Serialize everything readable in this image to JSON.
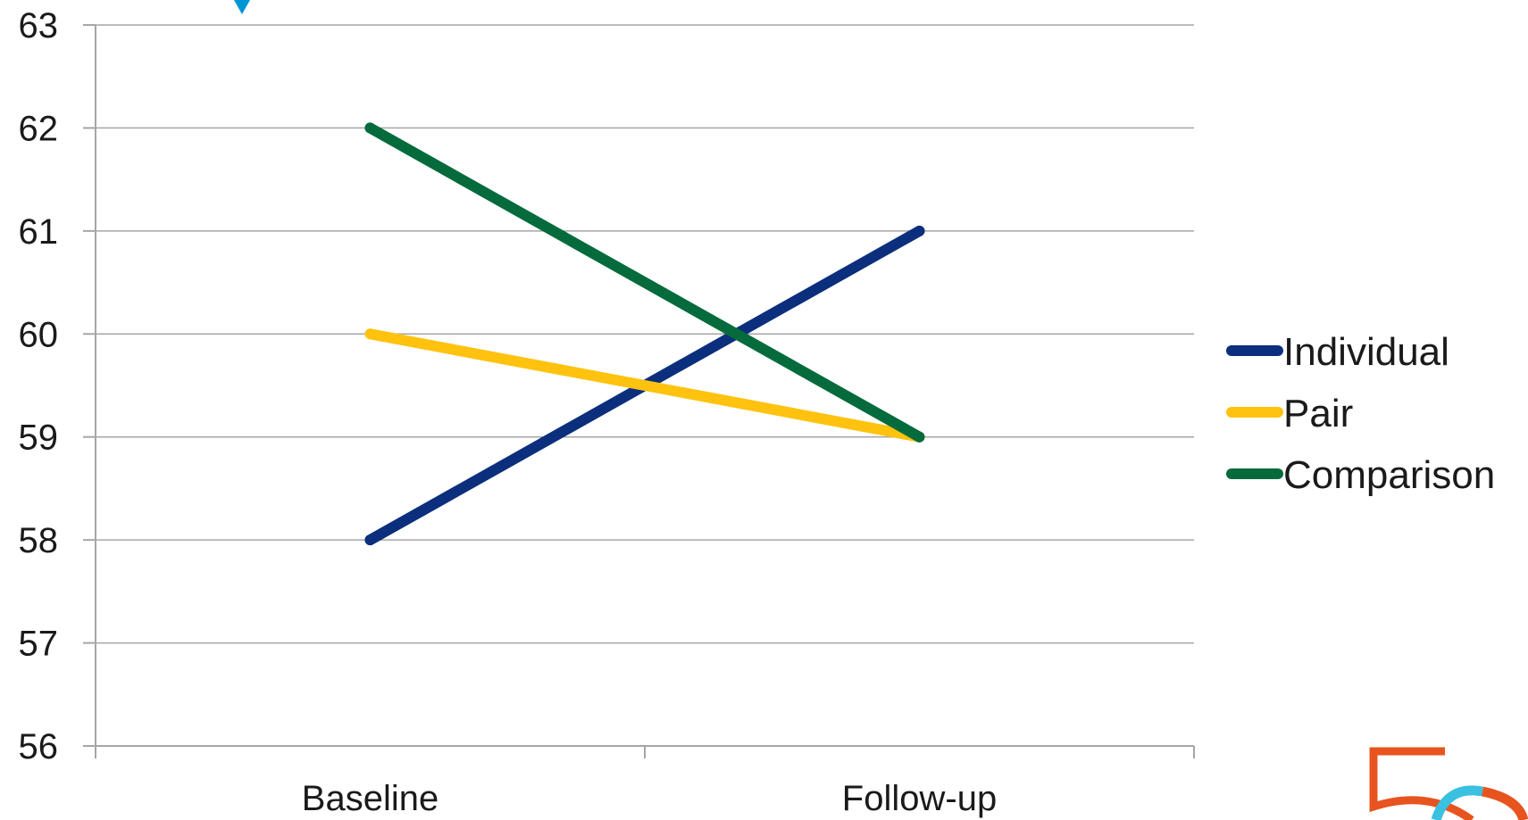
{
  "chart_data": {
    "type": "line",
    "categories": [
      "Baseline",
      "Follow-up"
    ],
    "series": [
      {
        "name": "Individual",
        "values": [
          58,
          61
        ],
        "color": "#0b2f7c"
      },
      {
        "name": "Pair",
        "values": [
          60,
          59
        ],
        "color": "#ffc20e"
      },
      {
        "name": "Comparison",
        "values": [
          62,
          59
        ],
        "color": "#056b3c"
      }
    ],
    "yticks": [
      "56",
      "57",
      "58",
      "59",
      "60",
      "61",
      "62",
      "63"
    ],
    "ylim": [
      56,
      63
    ],
    "grid": true,
    "legend": "right",
    "colors": {
      "gridline": "#a6a6a6",
      "axis": "#a6a6a6",
      "text": "#1a1a1a",
      "marker_top": "#0096d6",
      "logo_orange": "#e8541f",
      "logo_cyan": "#3ac0e0"
    }
  }
}
